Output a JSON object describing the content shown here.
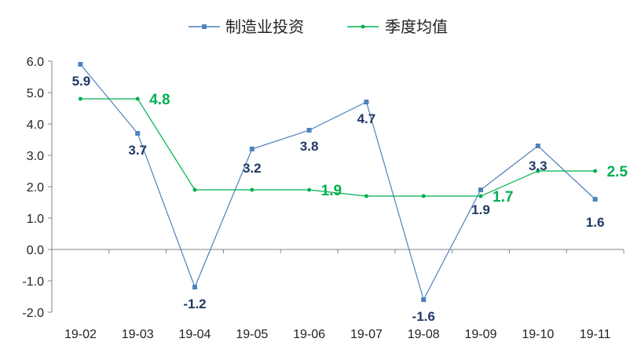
{
  "chart_data": {
    "type": "line",
    "categories": [
      "19-02",
      "19-03",
      "19-04",
      "19-05",
      "19-06",
      "19-07",
      "19-08",
      "19-09",
      "19-10",
      "19-11"
    ],
    "ylim": [
      -2.0,
      6.0
    ],
    "yticks": [
      "6.0",
      "5.0",
      "4.0",
      "3.0",
      "2.0",
      "1.0",
      "0.0",
      "-1.0",
      "-2.0"
    ],
    "grid": false,
    "legend_position": "top",
    "series": [
      {
        "name": "制造业投资",
        "color": "#4f81bd",
        "marker": "square",
        "values": [
          5.9,
          3.7,
          -1.2,
          3.2,
          3.8,
          4.7,
          -1.6,
          1.9,
          3.3,
          1.6
        ],
        "labels": [
          "5.9",
          "3.7",
          "-1.2",
          "3.2",
          "3.8",
          "4.7",
          "-1.6",
          "1.9",
          "3.3",
          "1.6"
        ],
        "label_color": "#1f3864"
      },
      {
        "name": "季度均值",
        "color": "#00b050",
        "marker": "dot",
        "values": [
          4.8,
          4.8,
          1.9,
          1.9,
          1.9,
          1.7,
          1.7,
          1.7,
          2.5,
          2.5
        ],
        "labels": [
          "",
          "4.8",
          "",
          "",
          "1.9",
          "",
          "",
          "1.7",
          "",
          "2.5"
        ],
        "label_color": "#00b050"
      }
    ]
  }
}
